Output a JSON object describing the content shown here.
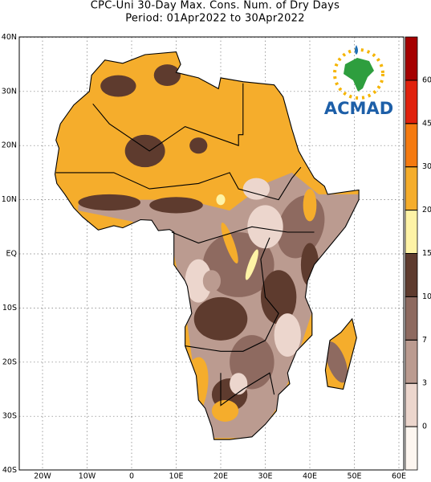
{
  "header": {
    "title": "CPC-Uni 30-Day Max. Cons. Num. of Dry Days",
    "subtitle": "Period: 01Apr2022 to 30Apr2022"
  },
  "map": {
    "lat_labels": [
      "40N",
      "30N",
      "20N",
      "10N",
      "EQ",
      "10S",
      "20S",
      "30S",
      "40S"
    ],
    "lon_labels": [
      "20W",
      "10W",
      "0",
      "10E",
      "20E",
      "30E",
      "40E",
      "50E",
      "60E"
    ]
  },
  "logo": "ACMAD",
  "colorbar": {
    "ticks": [
      0,
      3,
      7,
      10,
      15,
      20,
      30,
      45,
      60
    ],
    "colors": [
      "#fdf6f0",
      "#ecd6cd",
      "#bb9b90",
      "#8e6a60",
      "#5e3b2e",
      "#fef3a6",
      "#f5ad2c",
      "#f57a10",
      "#e0210c",
      "#a50000"
    ]
  }
}
